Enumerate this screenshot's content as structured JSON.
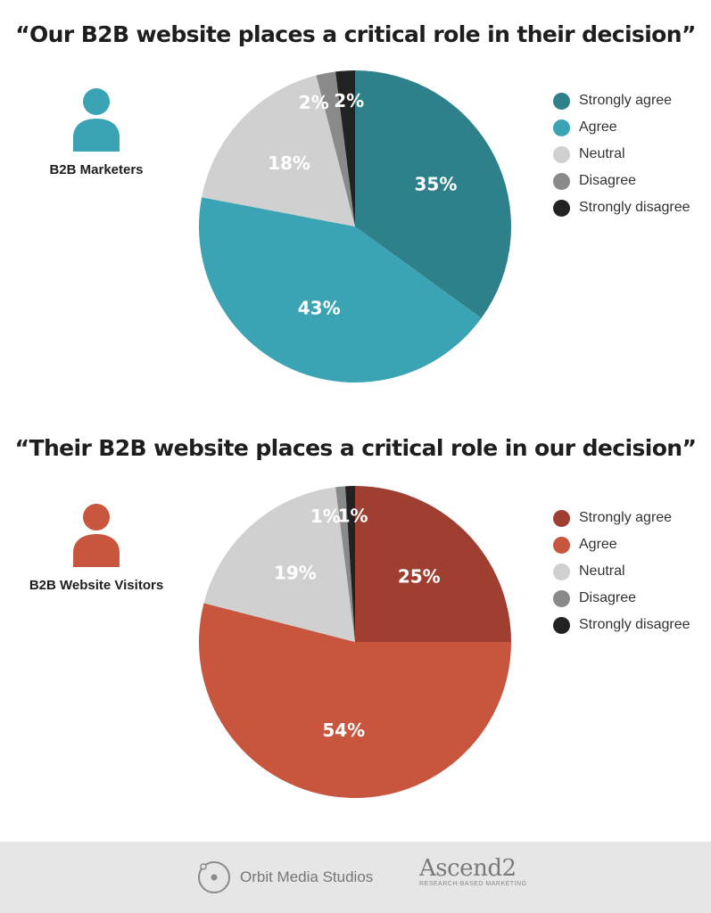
{
  "chart_data": [
    {
      "type": "pie",
      "title": "“Our B2B website places a critical role in their decision”",
      "group_label": "B2B Marketers",
      "slices": [
        {
          "label": "Strongly agree",
          "value": 35,
          "display": "35%",
          "color": "#2e818a"
        },
        {
          "label": "Agree",
          "value": 43,
          "display": "43%",
          "color": "#3aa4b4"
        },
        {
          "label": "Neutral",
          "value": 18,
          "display": "18%",
          "color": "#d0d0d0"
        },
        {
          "label": "Disagree",
          "value": 2,
          "display": "2%",
          "color": "#8a8a8a"
        },
        {
          "label": "Strongly disagree",
          "value": 2,
          "display": "2%",
          "color": "#222222"
        }
      ],
      "legend_placement": "right",
      "accent_color": "#3aa4b4"
    },
    {
      "type": "pie",
      "title": "“Their B2B website places a critical role in our decision”",
      "group_label": "B2B Website Visitors",
      "slices": [
        {
          "label": "Strongly agree",
          "value": 25,
          "display": "25%",
          "color": "#9e3f31"
        },
        {
          "label": "Agree",
          "value": 54,
          "display": "54%",
          "color": "#c8553e"
        },
        {
          "label": "Neutral",
          "value": 19,
          "display": "19%",
          "color": "#d0d0d0"
        },
        {
          "label": "Disagree",
          "value": 1,
          "display": "1%",
          "color": "#8a8a8a"
        },
        {
          "label": "Strongly disagree",
          "value": 1,
          "display": "1%",
          "color": "#222222"
        }
      ],
      "legend_placement": "right",
      "accent_color": "#c8553e"
    }
  ],
  "footer": {
    "orbit_text": "Orbit Media Studios",
    "ascend_word": "Ascend2",
    "ascend_tagline": "RESEARCH-BASED MARKETING"
  },
  "icons": {
    "persona": "user-silhouette-icon",
    "orbit_logo": "orbit-logo-icon"
  }
}
